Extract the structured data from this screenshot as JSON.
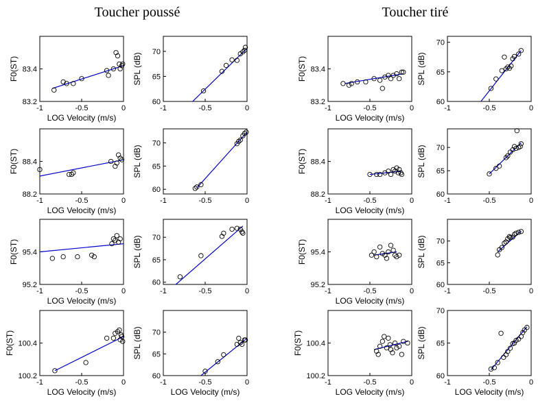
{
  "headings": {
    "left": "Toucher poussé",
    "right": "Toucher tiré"
  },
  "colors": {
    "fit_line": "#0000cc",
    "marker": "#000000",
    "axes": "#000000"
  },
  "chart_data": [
    {
      "type": "scatter",
      "group": "Toucher poussé",
      "xlabel": "LOG Velocity (m/s)",
      "ylabel": "F0(ST)",
      "xlim": [
        -1,
        0
      ],
      "ylim": [
        83.2,
        83.6
      ],
      "xticks": [
        "-1",
        "-0.5",
        "0"
      ],
      "yticks": [
        "83.2",
        "83.4"
      ],
      "points": [
        [
          -0.83,
          83.27
        ],
        [
          -0.72,
          83.32
        ],
        [
          -0.68,
          83.31
        ],
        [
          -0.6,
          83.31
        ],
        [
          -0.5,
          83.34
        ],
        [
          -0.2,
          83.39
        ],
        [
          -0.18,
          83.36
        ],
        [
          -0.12,
          83.4
        ],
        [
          -0.09,
          83.5
        ],
        [
          -0.07,
          83.48
        ],
        [
          -0.05,
          83.43
        ],
        [
          -0.04,
          83.4
        ],
        [
          -0.02,
          83.42
        ],
        [
          -0.01,
          83.43
        ]
      ],
      "fit": [
        [
          -0.85,
          83.28
        ],
        [
          0,
          83.42
        ]
      ]
    },
    {
      "type": "scatter",
      "group": "Toucher poussé",
      "xlabel": "",
      "ylabel": "SPL (dB)",
      "xlim": [
        -1,
        0
      ],
      "ylim": [
        60,
        73
      ],
      "xticks": [
        "-1",
        "-0.5",
        "0"
      ],
      "yticks": [
        "60",
        "65",
        "70"
      ],
      "points": [
        [
          -0.52,
          62.1
        ],
        [
          -0.3,
          66.0
        ],
        [
          -0.25,
          67.2
        ],
        [
          -0.18,
          68.3
        ],
        [
          -0.12,
          68.2
        ],
        [
          -0.08,
          69.5
        ],
        [
          -0.05,
          69.9
        ],
        [
          -0.03,
          70.2
        ],
        [
          -0.02,
          70.8
        ]
      ],
      "fit": [
        [
          -0.65,
          60
        ],
        [
          0,
          70.6
        ]
      ]
    },
    {
      "type": "scatter",
      "group": "Toucher tiré",
      "xlabel": "LOG Velocity (m/s)",
      "ylabel": "F0(ST)",
      "xlim": [
        -1,
        0
      ],
      "ylim": [
        83.2,
        83.6
      ],
      "xticks": [
        "-1",
        "-0.5",
        "0"
      ],
      "yticks": [
        "83.2",
        "83.4"
      ],
      "points": [
        [
          -0.82,
          83.31
        ],
        [
          -0.75,
          83.3
        ],
        [
          -0.72,
          83.31
        ],
        [
          -0.65,
          83.32
        ],
        [
          -0.55,
          83.32
        ],
        [
          -0.45,
          83.34
        ],
        [
          -0.38,
          83.33
        ],
        [
          -0.35,
          83.28
        ],
        [
          -0.32,
          83.35
        ],
        [
          -0.28,
          83.36
        ],
        [
          -0.25,
          83.34
        ],
        [
          -0.22,
          83.36
        ],
        [
          -0.18,
          83.37
        ],
        [
          -0.15,
          83.34
        ],
        [
          -0.12,
          83.38
        ],
        [
          -0.1,
          83.38
        ]
      ],
      "fit": [
        [
          -0.8,
          83.31
        ],
        [
          -0.1,
          83.37
        ]
      ]
    },
    {
      "type": "scatter",
      "group": "Toucher tiré",
      "xlabel": "",
      "ylabel": "SPL (dB)",
      "xlim": [
        -1,
        0
      ],
      "ylim": [
        60,
        71
      ],
      "xticks": [
        "-1",
        "-0.5",
        "0"
      ],
      "yticks": [
        "60",
        "65",
        "70"
      ],
      "points": [
        [
          -0.48,
          62.2
        ],
        [
          -0.42,
          63.8
        ],
        [
          -0.35,
          65.2
        ],
        [
          -0.32,
          67.5
        ],
        [
          -0.3,
          65.5
        ],
        [
          -0.28,
          65.8
        ],
        [
          -0.26,
          65.6
        ],
        [
          -0.24,
          66.0
        ],
        [
          -0.22,
          67.2
        ],
        [
          -0.2,
          67.6
        ],
        [
          -0.15,
          68.0
        ],
        [
          -0.12,
          68.6
        ]
      ],
      "fit": [
        [
          -0.6,
          60
        ],
        [
          -0.12,
          68.6
        ]
      ]
    },
    {
      "type": "scatter",
      "group": "Toucher poussé",
      "xlabel": "LOG Velocity (m/s)",
      "ylabel": "F0(ST)",
      "xlim": [
        -1,
        0
      ],
      "ylim": [
        88.2,
        88.6
      ],
      "xticks": [
        "-1",
        "-0.5",
        "0"
      ],
      "yticks": [
        "88.2",
        "88.4"
      ],
      "points": [
        [
          -1.0,
          88.35
        ],
        [
          -0.65,
          88.32
        ],
        [
          -0.62,
          88.32
        ],
        [
          -0.6,
          88.33
        ],
        [
          -0.15,
          88.4
        ],
        [
          -0.1,
          88.37
        ],
        [
          -0.08,
          88.39
        ],
        [
          -0.06,
          88.44
        ],
        [
          -0.04,
          88.42
        ],
        [
          -0.02,
          88.41
        ]
      ],
      "fit": [
        [
          -1,
          88.31
        ],
        [
          0,
          88.41
        ]
      ]
    },
    {
      "type": "scatter",
      "group": "Toucher poussé",
      "xlabel": "",
      "ylabel": "SPL (dB)",
      "xlim": [
        -1,
        0
      ],
      "ylim": [
        59,
        73
      ],
      "xticks": [
        "-1",
        "-0.5",
        "0"
      ],
      "yticks": [
        "60",
        "65",
        "70"
      ],
      "points": [
        [
          -0.62,
          60.2
        ],
        [
          -0.6,
          60.5
        ],
        [
          -0.55,
          61.0
        ],
        [
          -0.12,
          69.8
        ],
        [
          -0.1,
          70.3
        ],
        [
          -0.08,
          70.6
        ],
        [
          -0.05,
          71.5
        ],
        [
          -0.03,
          72.0
        ],
        [
          -0.01,
          72.3
        ]
      ],
      "fit": [
        [
          -0.6,
          60.3
        ],
        [
          0,
          72.3
        ]
      ]
    },
    {
      "type": "scatter",
      "group": "Toucher tiré",
      "xlabel": "LOG Velocity (m/s)",
      "ylabel": "F0(ST)",
      "xlim": [
        -1,
        0
      ],
      "ylim": [
        88.2,
        88.6
      ],
      "xticks": [
        "-1",
        "-0.5",
        "0"
      ],
      "yticks": [
        "88.2",
        "88.4"
      ],
      "points": [
        [
          -0.5,
          88.32
        ],
        [
          -0.42,
          88.32
        ],
        [
          -0.38,
          88.32
        ],
        [
          -0.32,
          88.33
        ],
        [
          -0.28,
          88.34
        ],
        [
          -0.25,
          88.32
        ],
        [
          -0.22,
          88.35
        ],
        [
          -0.2,
          88.34
        ],
        [
          -0.18,
          88.36
        ],
        [
          -0.16,
          88.33
        ],
        [
          -0.15,
          88.35
        ],
        [
          -0.13,
          88.33
        ],
        [
          -0.12,
          88.32
        ]
      ],
      "fit": [
        [
          -0.5,
          88.32
        ],
        [
          -0.12,
          88.34
        ]
      ]
    },
    {
      "type": "scatter",
      "group": "Toucher tiré",
      "xlabel": "",
      "ylabel": "SPL (dB)",
      "xlim": [
        -1,
        0
      ],
      "ylim": [
        60,
        74
      ],
      "xticks": [
        "-1",
        "-0.5",
        "0"
      ],
      "yticks": [
        "60",
        "65",
        "70"
      ],
      "points": [
        [
          -0.5,
          64.3
        ],
        [
          -0.42,
          65.5
        ],
        [
          -0.38,
          66.0
        ],
        [
          -0.3,
          67.8
        ],
        [
          -0.28,
          68.2
        ],
        [
          -0.25,
          69.0
        ],
        [
          -0.22,
          69.5
        ],
        [
          -0.2,
          70.2
        ],
        [
          -0.18,
          69.8
        ],
        [
          -0.17,
          73.6
        ],
        [
          -0.15,
          70.0
        ],
        [
          -0.13,
          70.2
        ],
        [
          -0.12,
          70.8
        ]
      ],
      "fit": [
        [
          -0.5,
          64.3
        ],
        [
          -0.12,
          71.0
        ]
      ]
    },
    {
      "type": "scatter",
      "group": "Toucher poussé",
      "xlabel": "LOG Velocity (m/s)",
      "ylabel": "F0(ST)",
      "xlim": [
        -1,
        0
      ],
      "ylim": [
        95.2,
        95.6
      ],
      "xticks": [
        "-1",
        "-0.5",
        "0"
      ],
      "yticks": [
        "95.2",
        "95.4"
      ],
      "points": [
        [
          -0.85,
          95.36
        ],
        [
          -0.72,
          95.37
        ],
        [
          -0.55,
          95.37
        ],
        [
          -0.38,
          95.38
        ],
        [
          -0.35,
          95.37
        ],
        [
          -0.14,
          95.45
        ],
        [
          -0.12,
          95.48
        ],
        [
          -0.1,
          95.47
        ],
        [
          -0.08,
          95.5
        ],
        [
          -0.06,
          95.46
        ],
        [
          -0.04,
          95.48
        ]
      ],
      "fit": [
        [
          -1,
          95.4
        ],
        [
          0,
          95.45
        ]
      ]
    },
    {
      "type": "scatter",
      "group": "Toucher poussé",
      "xlabel": "",
      "ylabel": "SPL (dB)",
      "xlim": [
        -1,
        0
      ],
      "ylim": [
        59.5,
        74
      ],
      "xticks": [
        "-1",
        "-0.5",
        "0"
      ],
      "yticks": [
        "60",
        "65",
        "70"
      ],
      "points": [
        [
          -0.8,
          61.2
        ],
        [
          -0.55,
          65.9
        ],
        [
          -0.3,
          70.2
        ],
        [
          -0.28,
          70.9
        ],
        [
          -0.18,
          71.8
        ],
        [
          -0.12,
          72.0
        ],
        [
          -0.08,
          71.8
        ],
        [
          -0.06,
          71.2
        ],
        [
          -0.05,
          70.9
        ]
      ],
      "fit": [
        [
          -0.85,
          59.5
        ],
        [
          -0.05,
          72.5
        ]
      ]
    },
    {
      "type": "scatter",
      "group": "Toucher tiré",
      "xlabel": "LOG Velocity (m/s)",
      "ylabel": "F0(ST)",
      "xlim": [
        -1,
        0
      ],
      "ylim": [
        95.2,
        95.6
      ],
      "xticks": [
        "-1",
        "-0.5",
        "0"
      ],
      "yticks": [
        "95.2",
        "95.4"
      ],
      "points": [
        [
          -0.48,
          95.38
        ],
        [
          -0.45,
          95.4
        ],
        [
          -0.42,
          95.37
        ],
        [
          -0.38,
          95.43
        ],
        [
          -0.35,
          95.39
        ],
        [
          -0.32,
          95.38
        ],
        [
          -0.3,
          95.36
        ],
        [
          -0.28,
          95.4
        ],
        [
          -0.25,
          95.44
        ],
        [
          -0.22,
          95.41
        ],
        [
          -0.2,
          95.38
        ],
        [
          -0.18,
          95.37
        ],
        [
          -0.15,
          95.38
        ]
      ],
      "fit": [
        [
          -0.45,
          95.38
        ],
        [
          -0.18,
          95.4
        ]
      ]
    },
    {
      "type": "scatter",
      "group": "Toucher tiré",
      "xlabel": "",
      "ylabel": "SPL (dB)",
      "xlim": [
        -1,
        0
      ],
      "ylim": [
        60,
        75
      ],
      "xticks": [
        "-1",
        "-0.5",
        "0"
      ],
      "yticks": [
        "60",
        "65",
        "70"
      ],
      "points": [
        [
          -0.4,
          66.8
        ],
        [
          -0.38,
          68.0
        ],
        [
          -0.35,
          68.5
        ],
        [
          -0.32,
          69.5
        ],
        [
          -0.3,
          69.8
        ],
        [
          -0.28,
          70.5
        ],
        [
          -0.26,
          71.0
        ],
        [
          -0.25,
          70.8
        ],
        [
          -0.22,
          70.9
        ],
        [
          -0.2,
          71.5
        ],
        [
          -0.18,
          71.8
        ],
        [
          -0.15,
          72.0
        ],
        [
          -0.12,
          72.2
        ]
      ],
      "fit": [
        [
          -0.4,
          67.5
        ],
        [
          -0.12,
          72.3
        ]
      ]
    },
    {
      "type": "scatter",
      "group": "Toucher poussé",
      "xlabel": "LOG Velocity (m/s)",
      "ylabel": "F0(ST)",
      "xlim": [
        -1,
        0
      ],
      "ylim": [
        100.2,
        100.6
      ],
      "xticks": [
        "-1",
        "-0.5",
        "0"
      ],
      "yticks": [
        "100.2",
        "100.4"
      ],
      "points": [
        [
          -0.82,
          100.23
        ],
        [
          -0.45,
          100.28
        ],
        [
          -0.2,
          100.43
        ],
        [
          -0.12,
          100.43
        ],
        [
          -0.1,
          100.46
        ],
        [
          -0.07,
          100.47
        ],
        [
          -0.05,
          100.48
        ],
        [
          -0.04,
          100.42
        ],
        [
          -0.03,
          100.45
        ],
        [
          -0.02,
          100.44
        ],
        [
          -0.01,
          100.41
        ]
      ],
      "fit": [
        [
          -0.82,
          100.23
        ],
        [
          0,
          100.44
        ]
      ]
    },
    {
      "type": "scatter",
      "group": "Toucher poussé",
      "xlabel": "LOG Velocity (m/s)",
      "ylabel": "SPL (dB)",
      "xlim": [
        -1,
        0
      ],
      "ylim": [
        60,
        75
      ],
      "xticks": [
        "-1",
        "-0.5",
        "0"
      ],
      "yticks": [
        "60",
        "65",
        "70"
      ],
      "points": [
        [
          -0.5,
          61.0
        ],
        [
          -0.35,
          63.2
        ],
        [
          -0.28,
          64.8
        ],
        [
          -0.12,
          67.2
        ],
        [
          -0.1,
          68.6
        ],
        [
          -0.08,
          67.6
        ],
        [
          -0.06,
          67.2
        ],
        [
          -0.03,
          68.2
        ],
        [
          -0.02,
          68.2
        ]
      ],
      "fit": [
        [
          -0.55,
          60
        ],
        [
          0,
          68.6
        ]
      ]
    },
    {
      "type": "scatter",
      "group": "Toucher tiré",
      "xlabel": "LOG Velocity (m/s)",
      "ylabel": "F0(ST)",
      "xlim": [
        -1,
        0
      ],
      "ylim": [
        100.2,
        100.6
      ],
      "xticks": [
        "-1",
        "-0.5",
        "0"
      ],
      "yticks": [
        "100.2",
        "100.4"
      ],
      "points": [
        [
          -0.42,
          100.35
        ],
        [
          -0.4,
          100.33
        ],
        [
          -0.38,
          100.38
        ],
        [
          -0.35,
          100.41
        ],
        [
          -0.33,
          100.44
        ],
        [
          -0.3,
          100.37
        ],
        [
          -0.28,
          100.43
        ],
        [
          -0.26,
          100.39
        ],
        [
          -0.25,
          100.36
        ],
        [
          -0.23,
          100.34
        ],
        [
          -0.2,
          100.4
        ],
        [
          -0.18,
          100.37
        ],
        [
          -0.15,
          100.38
        ],
        [
          -0.12,
          100.33
        ],
        [
          -0.1,
          100.41
        ],
        [
          -0.05,
          100.4
        ]
      ],
      "fit": [
        [
          -0.45,
          100.36
        ],
        [
          -0.05,
          100.41
        ]
      ]
    },
    {
      "type": "scatter",
      "group": "Toucher tiré",
      "xlabel": "LOG Velocity (m/s)",
      "ylabel": "SPL (dB)",
      "xlim": [
        -1,
        0
      ],
      "ylim": [
        60,
        70
      ],
      "xticks": [
        "-1",
        "-0.5",
        "0"
      ],
      "yticks": [
        "60",
        "65",
        "70"
      ],
      "points": [
        [
          -0.48,
          61.0
        ],
        [
          -0.44,
          61.2
        ],
        [
          -0.4,
          62.0
        ],
        [
          -0.36,
          66.5
        ],
        [
          -0.33,
          62.8
        ],
        [
          -0.3,
          63.2
        ],
        [
          -0.28,
          63.7
        ],
        [
          -0.25,
          64.2
        ],
        [
          -0.22,
          64.9
        ],
        [
          -0.2,
          65.0
        ],
        [
          -0.18,
          65.4
        ],
        [
          -0.15,
          65.6
        ],
        [
          -0.12,
          66.0
        ],
        [
          -0.1,
          66.6
        ],
        [
          -0.08,
          67.0
        ],
        [
          -0.05,
          67.4
        ]
      ],
      "fit": [
        [
          -0.48,
          60.9
        ],
        [
          -0.05,
          67.5
        ]
      ]
    }
  ]
}
